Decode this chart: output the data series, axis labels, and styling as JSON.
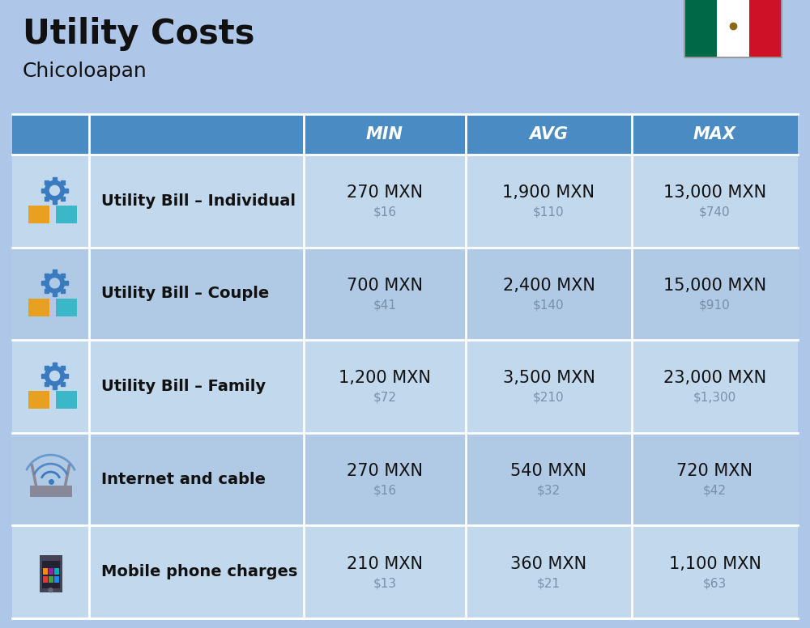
{
  "title": "Utility Costs",
  "subtitle": "Chicoloapan",
  "background_color": "#aec6e8",
  "header_color": "#4a8bc4",
  "header_text_color": "#ffffff",
  "row_color_odd": "#c2d8ed",
  "row_color_even": "#b0c9e4",
  "separator_color": "#ffffff",
  "col_headers": [
    "MIN",
    "AVG",
    "MAX"
  ],
  "rows": [
    {
      "label": "Utility Bill – Individual",
      "icon": "utility",
      "min_mxn": "270 MXN",
      "min_usd": "$16",
      "avg_mxn": "1,900 MXN",
      "avg_usd": "$110",
      "max_mxn": "13,000 MXN",
      "max_usd": "$740"
    },
    {
      "label": "Utility Bill – Couple",
      "icon": "utility",
      "min_mxn": "700 MXN",
      "min_usd": "$41",
      "avg_mxn": "2,400 MXN",
      "avg_usd": "$140",
      "max_mxn": "15,000 MXN",
      "max_usd": "$910"
    },
    {
      "label": "Utility Bill – Family",
      "icon": "utility",
      "min_mxn": "1,200 MXN",
      "min_usd": "$72",
      "avg_mxn": "3,500 MXN",
      "avg_usd": "$210",
      "max_mxn": "23,000 MXN",
      "max_usd": "$1,300"
    },
    {
      "label": "Internet and cable",
      "icon": "internet",
      "min_mxn": "270 MXN",
      "min_usd": "$16",
      "avg_mxn": "540 MXN",
      "avg_usd": "$32",
      "max_mxn": "720 MXN",
      "max_usd": "$42"
    },
    {
      "label": "Mobile phone charges",
      "icon": "mobile",
      "min_mxn": "210 MXN",
      "min_usd": "$13",
      "avg_mxn": "360 MXN",
      "avg_usd": "$21",
      "max_mxn": "1,100 MXN",
      "max_usd": "$63"
    }
  ],
  "flag_colors": [
    "#006847",
    "#ffffff",
    "#ce1126"
  ],
  "title_fontsize": 30,
  "subtitle_fontsize": 18,
  "header_fontsize": 15,
  "label_fontsize": 14,
  "value_fontsize": 15,
  "usd_fontsize": 11,
  "usd_color": "#7a8fa8",
  "label_color": "#111111",
  "value_color": "#111111"
}
